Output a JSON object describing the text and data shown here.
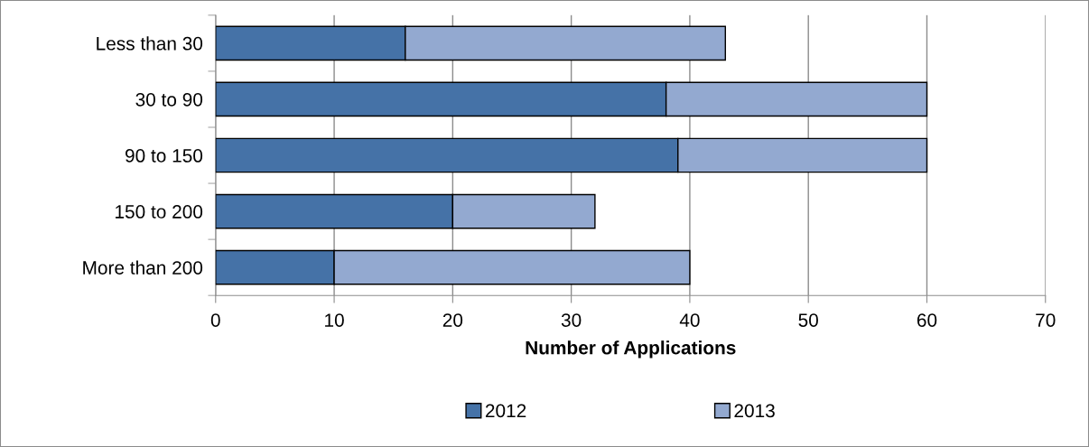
{
  "chart_data": {
    "type": "bar",
    "orientation": "horizontal",
    "stacked": true,
    "categories": [
      "Less than 30",
      "30 to 90",
      "90 to 150",
      "150 to 200",
      "More than 200"
    ],
    "series": [
      {
        "name": "2012",
        "color": "#4572a7",
        "values": [
          16,
          38,
          39,
          20,
          10
        ]
      },
      {
        "name": "2013",
        "color": "#93a9d0",
        "values": [
          27,
          22,
          21,
          12,
          30
        ]
      }
    ],
    "xlabel": "Number of Applications",
    "xlim": [
      0,
      70
    ],
    "xticks": [
      0,
      10,
      20,
      30,
      40,
      50,
      60,
      70
    ],
    "grid": "x",
    "legend": "bottom"
  }
}
